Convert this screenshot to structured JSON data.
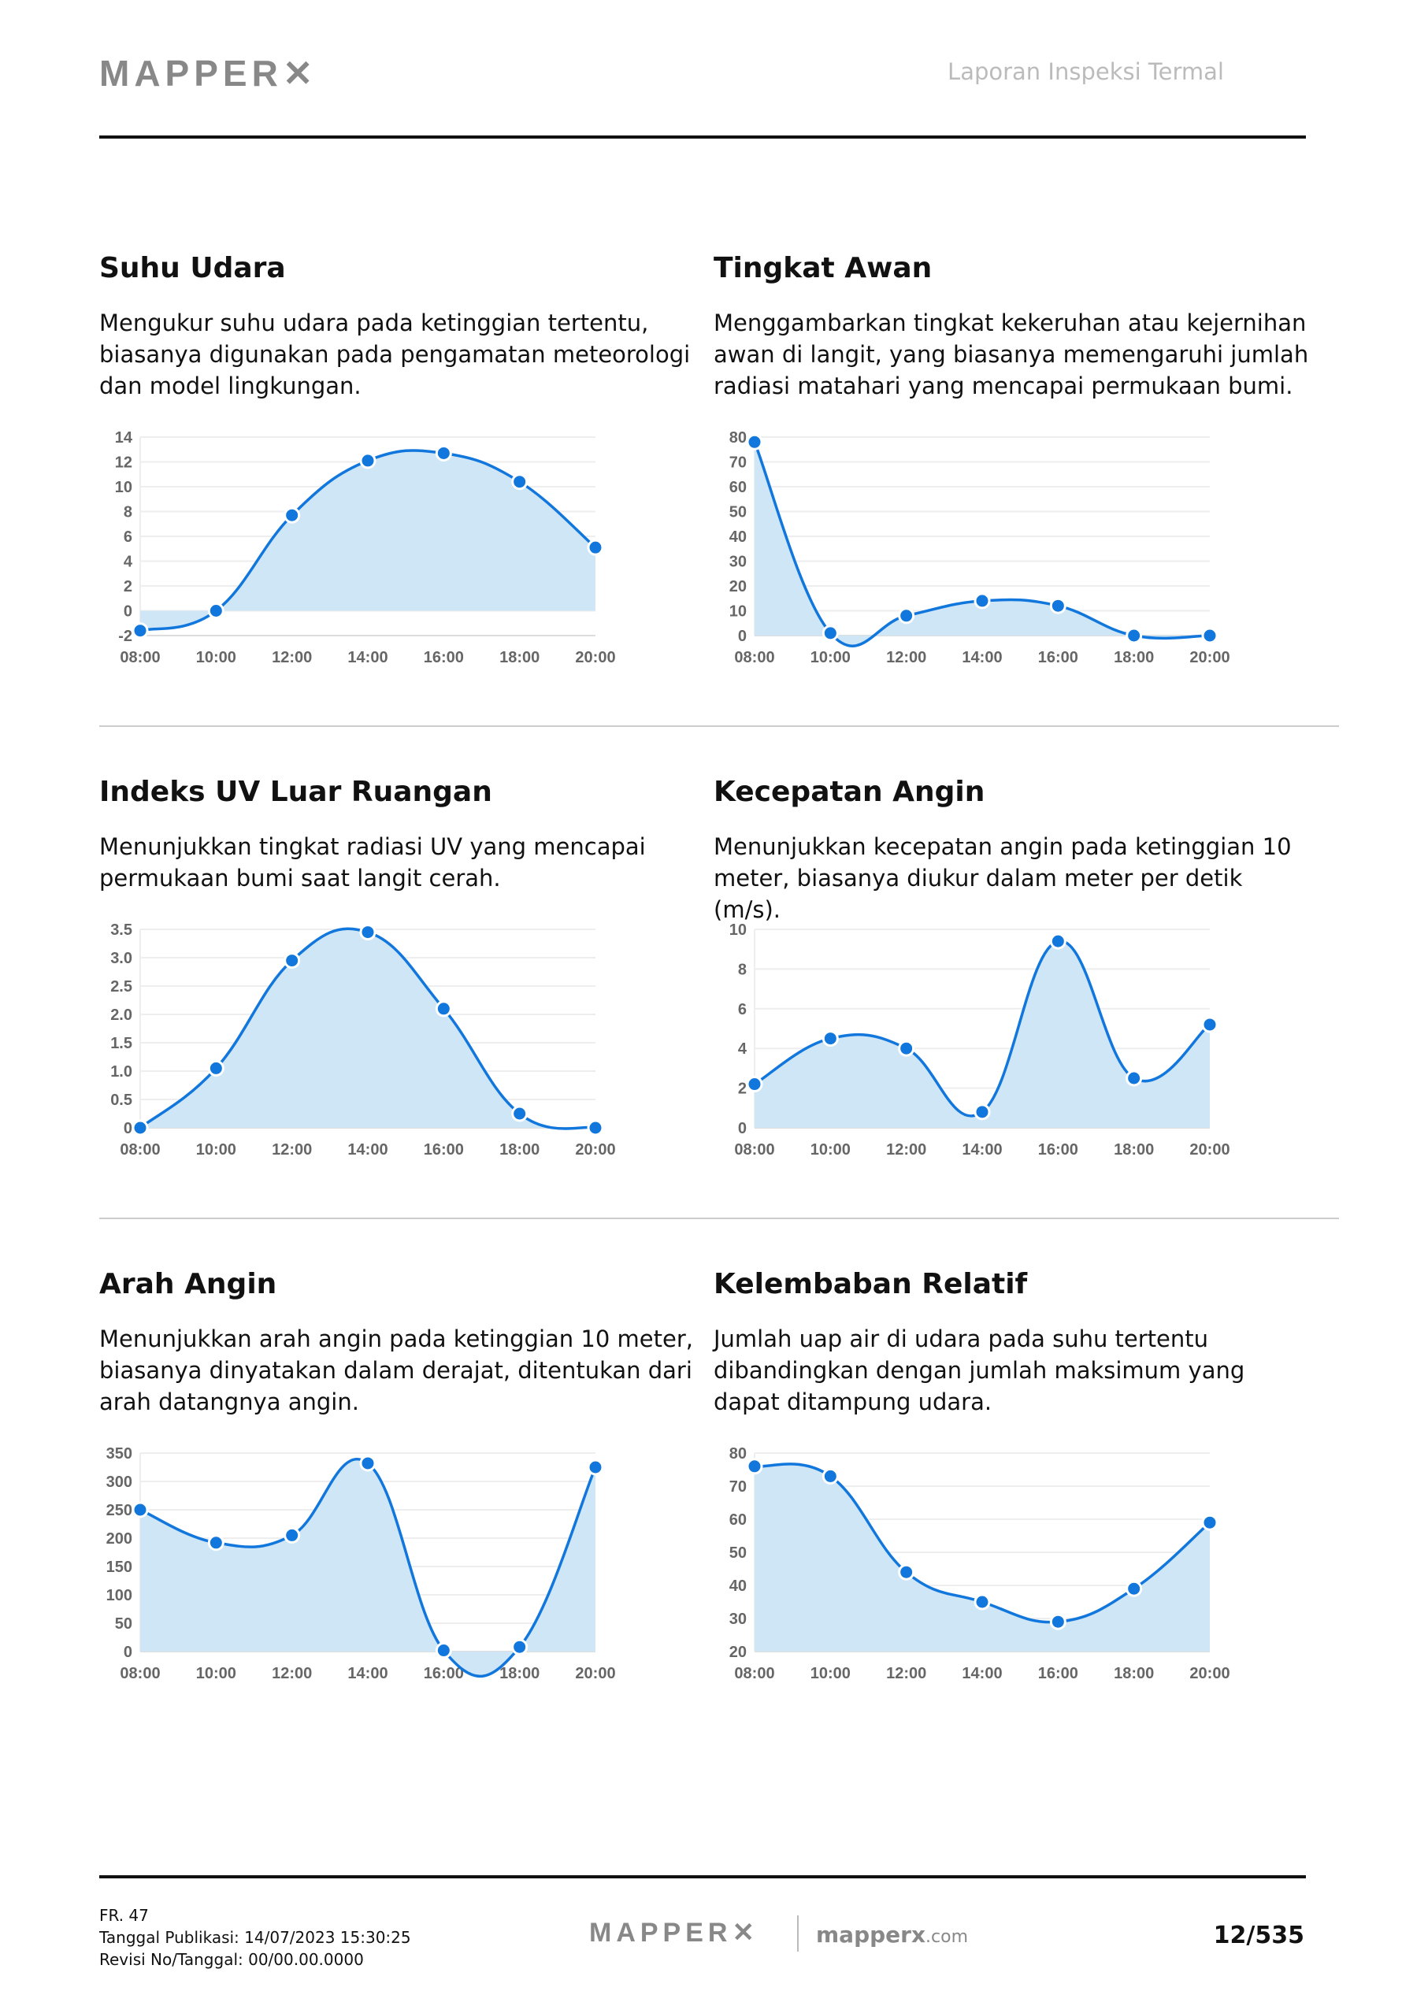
{
  "header": {
    "brand": "MAPPER",
    "report_title": "Laporan Inspeksi Termal"
  },
  "colors": {
    "line": "#1177dd",
    "fill": "#cfe6f6",
    "grid": "#eeeeee"
  },
  "sections": [
    {
      "title": "Suhu Udara",
      "description": "Mengukur suhu udara pada ketinggian tertentu, biasanya digunakan pada pengamatan meteorologi dan model lingkungan."
    },
    {
      "title": "Tingkat Awan",
      "description": "Menggambarkan tingkat kekeruhan atau kejernihan awan di langit, yang biasanya memengaruhi jumlah radiasi matahari yang mencapai permukaan bumi."
    },
    {
      "title": "Indeks UV Luar Ruangan",
      "description": "Menunjukkan tingkat radiasi UV yang mencapai permukaan bumi saat langit cerah."
    },
    {
      "title": "Kecepatan Angin",
      "description": "Menunjukkan kecepatan angin pada ketinggian 10 meter, biasanya diukur dalam meter per detik (m/s)."
    },
    {
      "title": "Arah Angin",
      "description": "Menunjukkan arah angin pada ketinggian 10 meter, biasanya dinyatakan dalam derajat, ditentukan dari arah datangnya angin."
    },
    {
      "title": "Kelembaban Relatif",
      "description": "Jumlah uap air di udara pada suhu tertentu dibandingkan dengan jumlah maksimum yang dapat ditampung udara."
    }
  ],
  "chart_data": [
    {
      "type": "area",
      "categories": [
        "08:00",
        "10:00",
        "12:00",
        "14:00",
        "16:00",
        "18:00",
        "20:00"
      ],
      "values": [
        -1.6,
        0,
        7.7,
        12.1,
        12.7,
        10.4,
        5.1
      ],
      "ylim": [
        -2,
        14
      ],
      "yticks": [
        "-2",
        "0",
        "2",
        "4",
        "6",
        "8",
        "10",
        "12",
        "14"
      ],
      "grid": true
    },
    {
      "type": "area",
      "categories": [
        "08:00",
        "10:00",
        "12:00",
        "14:00",
        "16:00",
        "18:00",
        "20:00"
      ],
      "values": [
        78,
        1,
        8,
        14,
        12,
        0,
        0
      ],
      "ylim": [
        0,
        80
      ],
      "yticks": [
        "0",
        "10",
        "20",
        "30",
        "40",
        "50",
        "60",
        "70",
        "80"
      ],
      "grid": true
    },
    {
      "type": "area",
      "categories": [
        "08:00",
        "10:00",
        "12:00",
        "14:00",
        "16:00",
        "18:00",
        "20:00"
      ],
      "values": [
        0,
        1.05,
        2.95,
        3.45,
        2.1,
        0.25,
        0
      ],
      "ylim": [
        0,
        3.5
      ],
      "yticks": [
        "0",
        "0.5",
        "1.0",
        "1.5",
        "2.0",
        "2.5",
        "3.0",
        "3.5"
      ],
      "grid": true
    },
    {
      "type": "area",
      "categories": [
        "08:00",
        "10:00",
        "12:00",
        "14:00",
        "16:00",
        "18:00",
        "20:00"
      ],
      "values": [
        2.2,
        4.5,
        4,
        0.8,
        9.4,
        2.5,
        5.2
      ],
      "ylim": [
        0,
        10
      ],
      "yticks": [
        "0",
        "2",
        "4",
        "6",
        "8",
        "10"
      ],
      "grid": true
    },
    {
      "type": "area",
      "categories": [
        "08:00",
        "10:00",
        "12:00",
        "14:00",
        "16:00",
        "18:00",
        "20:00"
      ],
      "values": [
        250,
        192,
        205,
        332,
        2,
        8,
        325
      ],
      "ylim": [
        0,
        350
      ],
      "yticks": [
        "0",
        "50",
        "100",
        "150",
        "200",
        "250",
        "300",
        "350"
      ],
      "grid": true
    },
    {
      "type": "area",
      "categories": [
        "08:00",
        "10:00",
        "12:00",
        "14:00",
        "16:00",
        "18:00",
        "20:00"
      ],
      "values": [
        76,
        73,
        44,
        35,
        29,
        39,
        59
      ],
      "ylim": [
        20,
        80
      ],
      "yticks": [
        "20",
        "30",
        "40",
        "50",
        "60",
        "70",
        "80"
      ],
      "grid": true
    }
  ],
  "footer": {
    "form": "FR. 47",
    "published": "Tanggal Publikasi: 14/07/2023 15:30:25",
    "revision": "Revisi No/Tanggal: 00/00.00.0000",
    "brand": "MAPPER",
    "site_main": "mapperx",
    "site_tld": ".com",
    "page": "12/535"
  }
}
